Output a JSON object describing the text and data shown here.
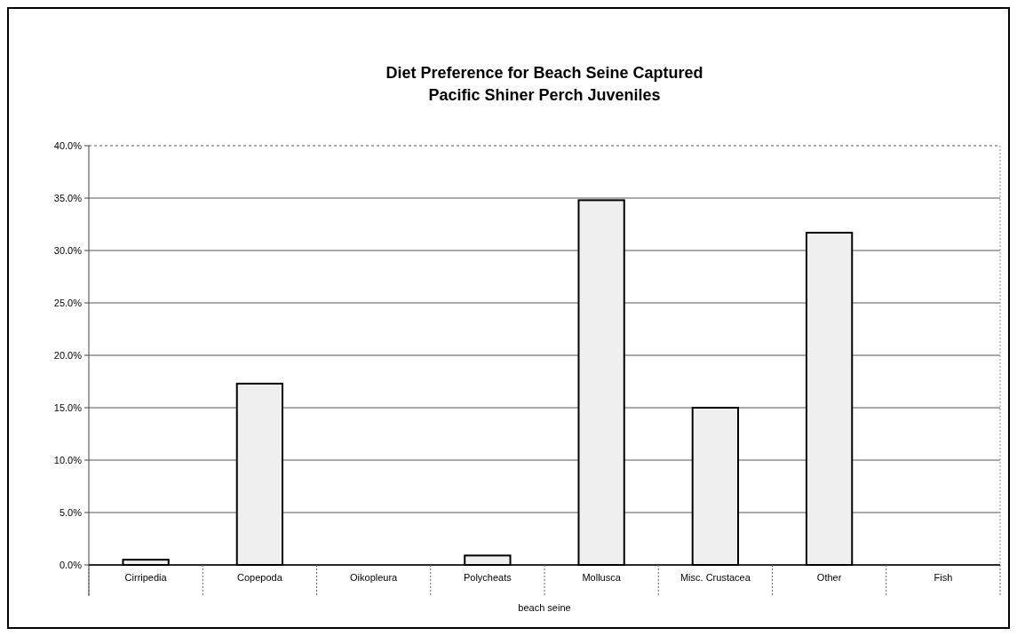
{
  "chart_data": {
    "type": "bar",
    "title": "Diet Preference for Beach Seine Captured\nPacific Shiner Perch Juveniles",
    "xlabel": "beach seine",
    "categories": [
      "Cirripedia",
      "Copepoda",
      "Oikopleura",
      "Polycheats",
      "Mollusca",
      "Misc. Crustacea",
      "Other",
      "Fish"
    ],
    "values": [
      0.5,
      17.3,
      0,
      0.9,
      34.8,
      15.0,
      31.7,
      0
    ],
    "color": "#efefef",
    "ylim": [
      0,
      40
    ],
    "yticks": [
      {
        "value": 0,
        "label": "0.0%"
      },
      {
        "value": 5,
        "label": "5.0%"
      },
      {
        "value": 10,
        "label": "10.0%"
      },
      {
        "value": 15,
        "label": "15.0%"
      },
      {
        "value": 20,
        "label": "20.0%"
      },
      {
        "value": 25,
        "label": "25.0%"
      },
      {
        "value": 30,
        "label": "30.0%"
      },
      {
        "value": 35,
        "label": "35.0%"
      },
      {
        "value": 40,
        "label": "40.0%"
      }
    ],
    "grid": "y"
  }
}
